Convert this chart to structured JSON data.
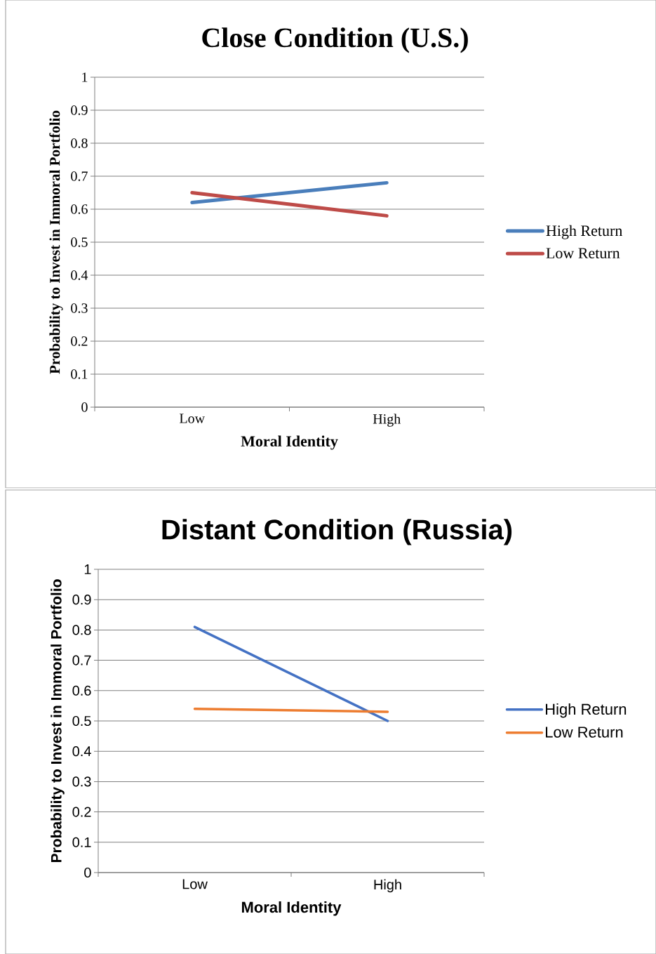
{
  "chart_data": [
    {
      "type": "line",
      "title": "Close Condition (U.S.)",
      "xlabel": "Moral Identity",
      "ylabel": "Probability to Invest in Immoral Portfolio",
      "categories": [
        "Low",
        "High"
      ],
      "series": [
        {
          "name": "High Return",
          "color": "#4a7ebb",
          "values": [
            0.62,
            0.68
          ]
        },
        {
          "name": "Low Return",
          "color": "#be4b48",
          "values": [
            0.65,
            0.58
          ]
        }
      ],
      "ylim": [
        0,
        1
      ],
      "yticks": [
        0,
        0.1,
        0.2,
        0.3,
        0.4,
        0.5,
        0.6,
        0.7,
        0.8,
        0.9,
        1
      ],
      "grid": "y",
      "legend": "right",
      "marker": "none",
      "line_style": "solid"
    },
    {
      "type": "line",
      "title": "Distant Condition (Russia)",
      "xlabel": "Moral Identity",
      "ylabel": "Probability to Invest in Immoral Portfolio",
      "categories": [
        "Low",
        "High"
      ],
      "series": [
        {
          "name": "High Return",
          "color": "#4472c4",
          "values": [
            0.81,
            0.5
          ]
        },
        {
          "name": "Low Return",
          "color": "#ed7d31",
          "values": [
            0.54,
            0.53
          ]
        }
      ],
      "ylim": [
        0,
        1
      ],
      "yticks": [
        0,
        0.1,
        0.2,
        0.3,
        0.4,
        0.5,
        0.6,
        0.7,
        0.8,
        0.9,
        1
      ],
      "grid": "y",
      "legend": "right",
      "marker": "none",
      "line_style": "solid"
    }
  ]
}
